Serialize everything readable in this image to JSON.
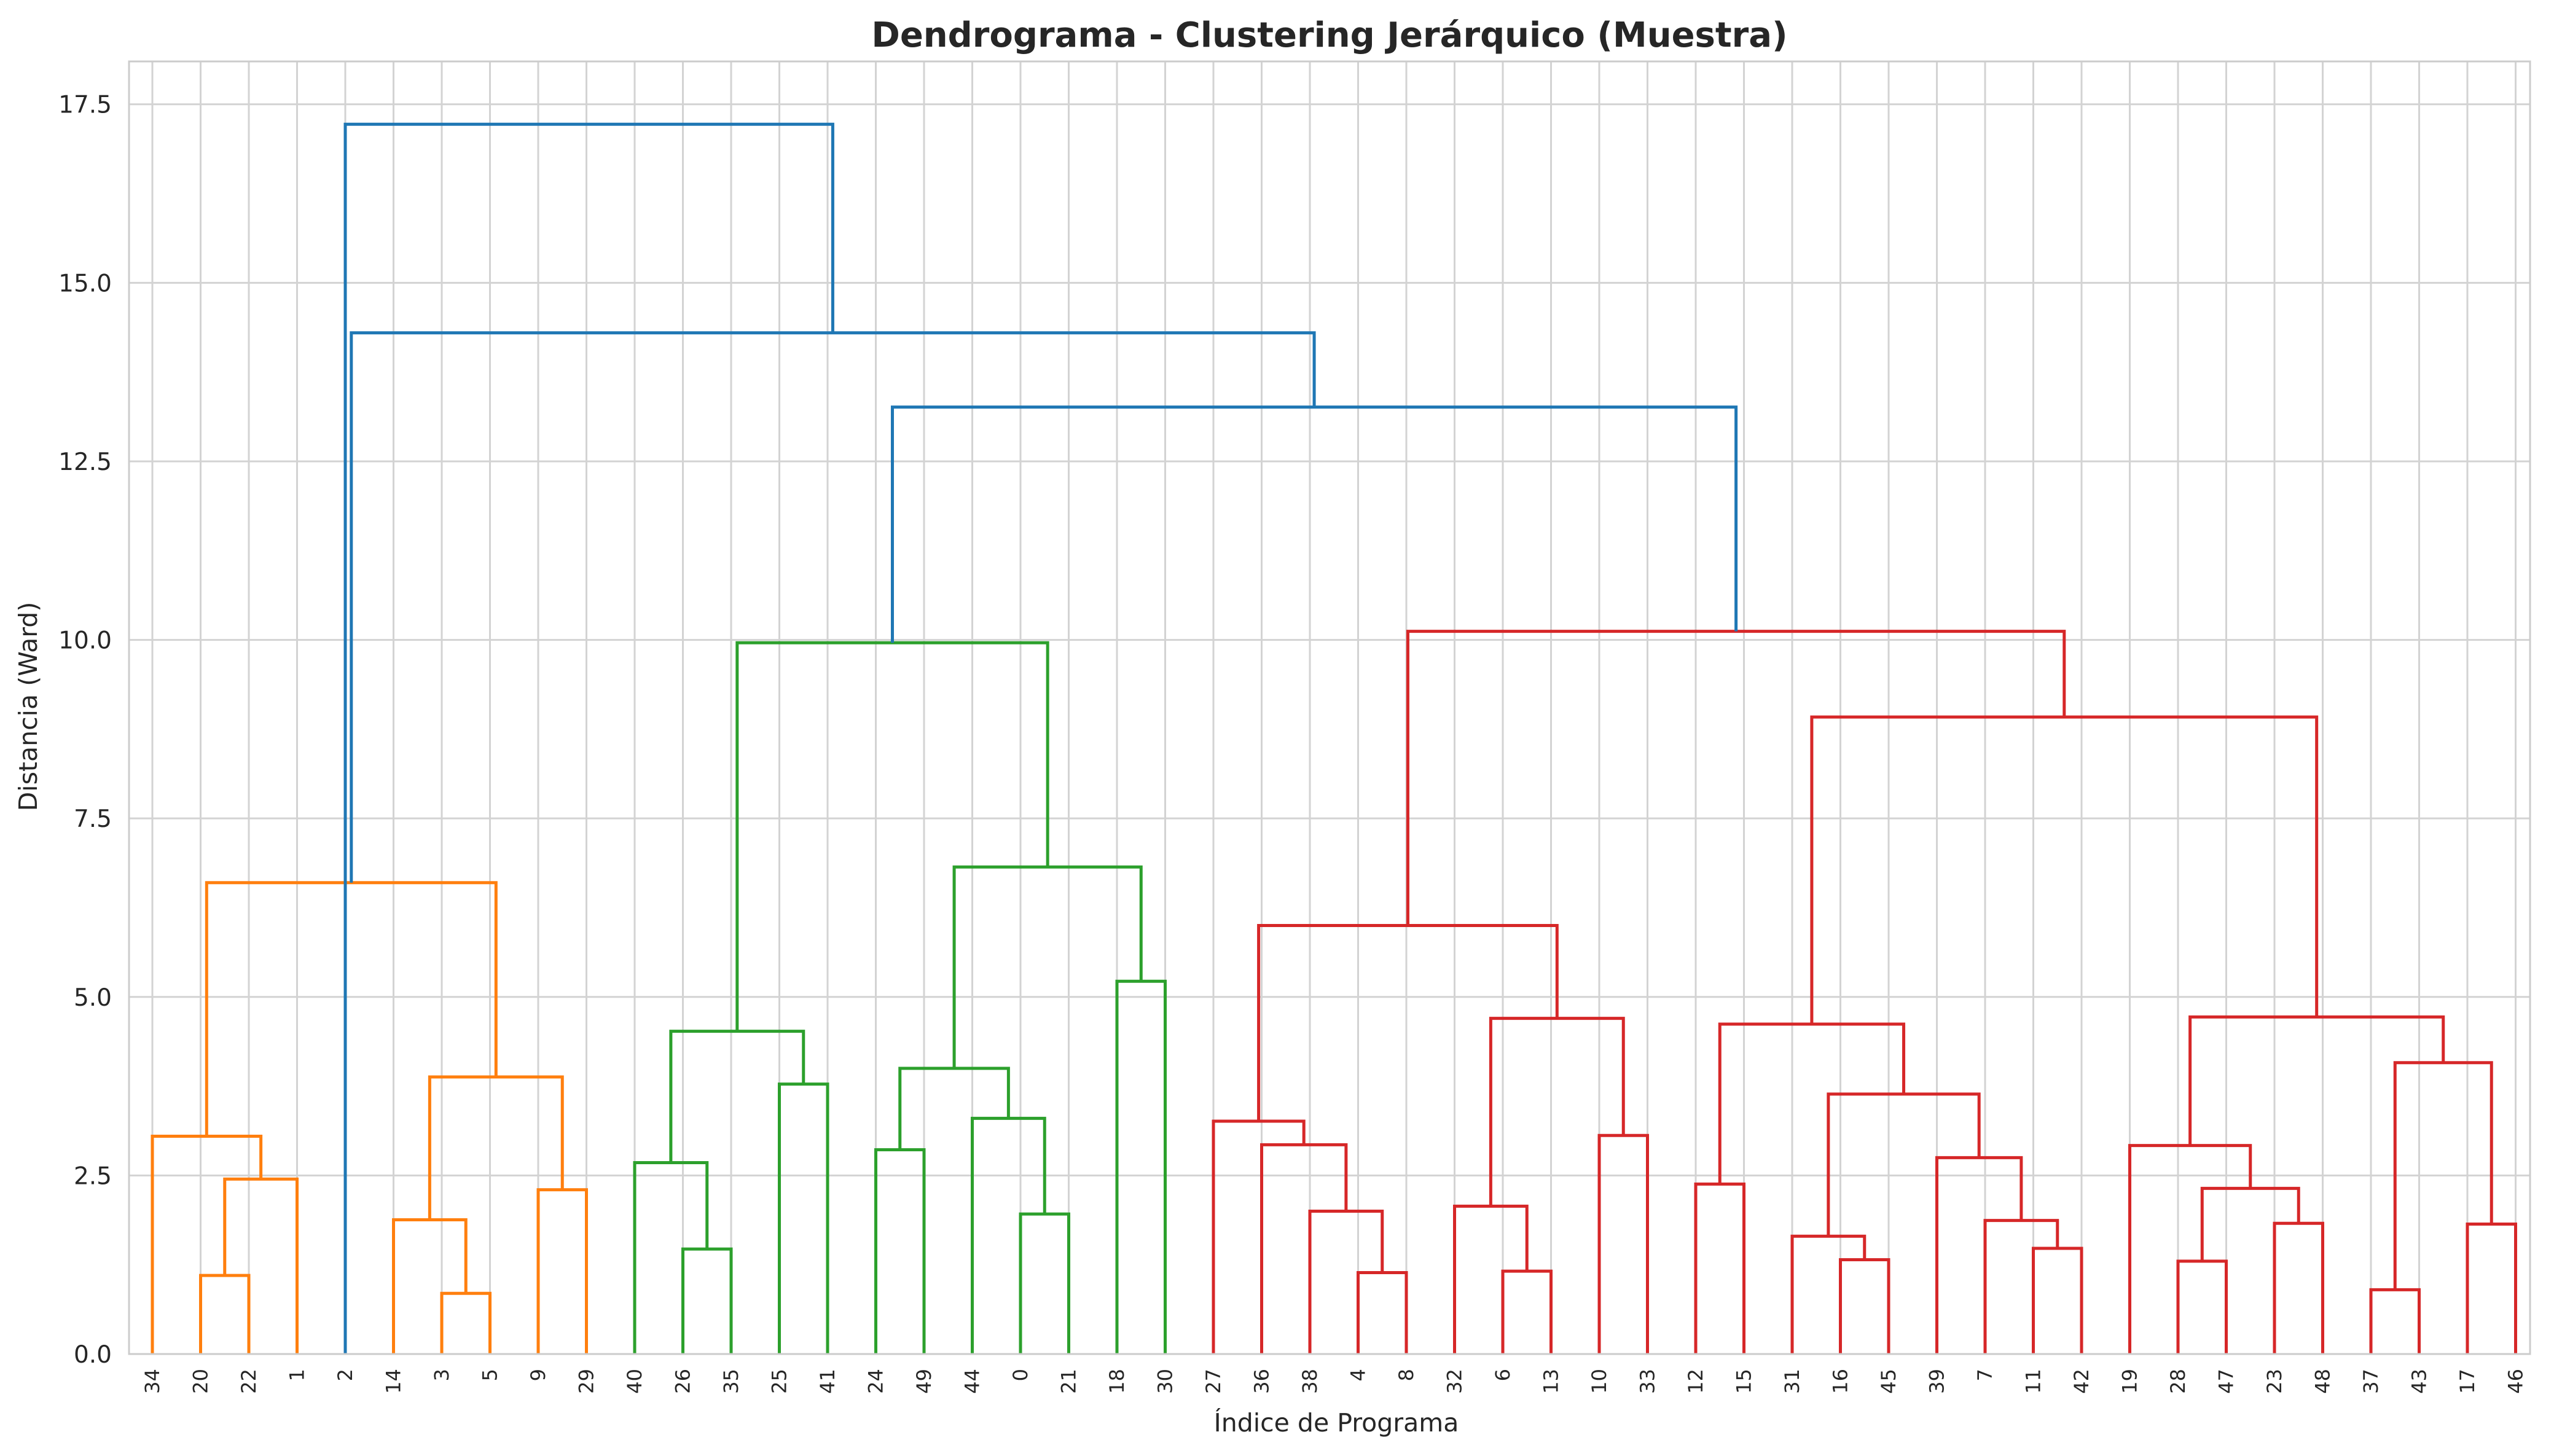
{
  "chart_data": {
    "type": "dendrogram",
    "title": "Dendrograma - Clustering Jerárquico (Muestra)",
    "xlabel": "Índice de Programa",
    "ylabel": "Distancia (Ward)",
    "ylim": [
      0,
      18.1
    ],
    "yticks": [
      0.0,
      2.5,
      5.0,
      7.5,
      10.0,
      12.5,
      15.0,
      17.5
    ],
    "ytick_labels": [
      "0.0",
      "2.5",
      "5.0",
      "7.5",
      "10.0",
      "12.5",
      "15.0",
      "17.5"
    ],
    "grid": true,
    "leaf_order": [
      "34",
      "20",
      "22",
      "1",
      "2",
      "14",
      "3",
      "5",
      "9",
      "29",
      "40",
      "26",
      "35",
      "25",
      "41",
      "24",
      "49",
      "44",
      "0",
      "21",
      "18",
      "30",
      "27",
      "36",
      "38",
      "4",
      "8",
      "32",
      "6",
      "13",
      "10",
      "33",
      "12",
      "15",
      "31",
      "16",
      "45",
      "39",
      "7",
      "11",
      "42",
      "19",
      "28",
      "47",
      "23",
      "48",
      "37",
      "43",
      "17",
      "46"
    ],
    "colors": {
      "C0": "#1f77b4",
      "C1": "#ff7f0e",
      "C2": "#2ca02c",
      "C3": "#d62728"
    },
    "links": [
      {
        "a": "L1",
        "b": "L2",
        "height": 1.1,
        "color": "C1"
      },
      {
        "a": "L3",
        "b": "N0",
        "height": 2.45,
        "color": "C1"
      },
      {
        "a": "L0",
        "b": "N1",
        "height": 3.05,
        "color": "C1"
      },
      {
        "a": "L6",
        "b": "L7",
        "height": 0.85,
        "color": "C1"
      },
      {
        "a": "L5",
        "b": "N3",
        "height": 1.88,
        "color": "C1"
      },
      {
        "a": "L8",
        "b": "L9",
        "height": 2.3,
        "color": "C1"
      },
      {
        "a": "N4",
        "b": "N5",
        "height": 3.88,
        "color": "C1"
      },
      {
        "a": "N2",
        "b": "N6",
        "height": 6.6,
        "color": "C1"
      },
      {
        "a": "L11",
        "b": "L12",
        "height": 1.47,
        "color": "C2"
      },
      {
        "a": "L10",
        "b": "N8",
        "height": 2.68,
        "color": "C2"
      },
      {
        "a": "L13",
        "b": "L14",
        "height": 3.78,
        "color": "C2"
      },
      {
        "a": "N9",
        "b": "N10",
        "height": 4.52,
        "color": "C2"
      },
      {
        "a": "L15",
        "b": "L16",
        "height": 2.86,
        "color": "C2"
      },
      {
        "a": "L18",
        "b": "L19",
        "height": 1.96,
        "color": "C2"
      },
      {
        "a": "L17",
        "b": "N13",
        "height": 3.3,
        "color": "C2"
      },
      {
        "a": "N12",
        "b": "N14",
        "height": 4.0,
        "color": "C2"
      },
      {
        "a": "L20",
        "b": "L21",
        "height": 5.22,
        "color": "C2"
      },
      {
        "a": "N15",
        "b": "N16",
        "height": 6.82,
        "color": "C2"
      },
      {
        "a": "N11",
        "b": "N17",
        "height": 9.96,
        "color": "C2"
      },
      {
        "a": "L25",
        "b": "L26",
        "height": 1.14,
        "color": "C3"
      },
      {
        "a": "L24",
        "b": "N19",
        "height": 2.0,
        "color": "C3"
      },
      {
        "a": "L23",
        "b": "N20",
        "height": 2.93,
        "color": "C3"
      },
      {
        "a": "L22",
        "b": "N21",
        "height": 3.26,
        "color": "C3"
      },
      {
        "a": "L28",
        "b": "L29",
        "height": 1.16,
        "color": "C3"
      },
      {
        "a": "L27",
        "b": "N23",
        "height": 2.07,
        "color": "C3"
      },
      {
        "a": "L30",
        "b": "L31",
        "height": 3.06,
        "color": "C3"
      },
      {
        "a": "N24",
        "b": "N25",
        "height": 4.7,
        "color": "C3"
      },
      {
        "a": "N22",
        "b": "N26",
        "height": 6.0,
        "color": "C3"
      },
      {
        "a": "L32",
        "b": "L33",
        "height": 2.38,
        "color": "C3"
      },
      {
        "a": "L35",
        "b": "L36",
        "height": 1.32,
        "color": "C3"
      },
      {
        "a": "L34",
        "b": "N29",
        "height": 1.65,
        "color": "C3"
      },
      {
        "a": "L39",
        "b": "L40",
        "height": 1.48,
        "color": "C3"
      },
      {
        "a": "L38",
        "b": "N31",
        "height": 1.87,
        "color": "C3"
      },
      {
        "a": "L37",
        "b": "N32",
        "height": 2.75,
        "color": "C3"
      },
      {
        "a": "N30",
        "b": "N33",
        "height": 3.64,
        "color": "C3"
      },
      {
        "a": "N28",
        "b": "N34",
        "height": 4.62,
        "color": "C3"
      },
      {
        "a": "L42",
        "b": "L43",
        "height": 1.3,
        "color": "C3"
      },
      {
        "a": "L44",
        "b": "L45",
        "height": 1.83,
        "color": "C3"
      },
      {
        "a": "N36",
        "b": "N37",
        "height": 2.32,
        "color": "C3"
      },
      {
        "a": "L41",
        "b": "N38",
        "height": 2.92,
        "color": "C3"
      },
      {
        "a": "L46",
        "b": "L47",
        "height": 0.9,
        "color": "C3"
      },
      {
        "a": "L48",
        "b": "L49",
        "height": 1.82,
        "color": "C3"
      },
      {
        "a": "N40",
        "b": "N41",
        "height": 4.08,
        "color": "C3"
      },
      {
        "a": "N39",
        "b": "N42",
        "height": 4.72,
        "color": "C3"
      },
      {
        "a": "N35",
        "b": "N43",
        "height": 8.92,
        "color": "C3"
      },
      {
        "a": "N27",
        "b": "N44",
        "height": 10.12,
        "color": "C3"
      },
      {
        "a": "N18",
        "b": "N45",
        "height": 13.26,
        "color": "C0"
      },
      {
        "a": "N7",
        "b": "N46",
        "height": 14.3,
        "color": "C0"
      },
      {
        "a": "L4",
        "b": "N47",
        "height": 17.22,
        "color": "C0",
        "swap": true
      }
    ]
  }
}
